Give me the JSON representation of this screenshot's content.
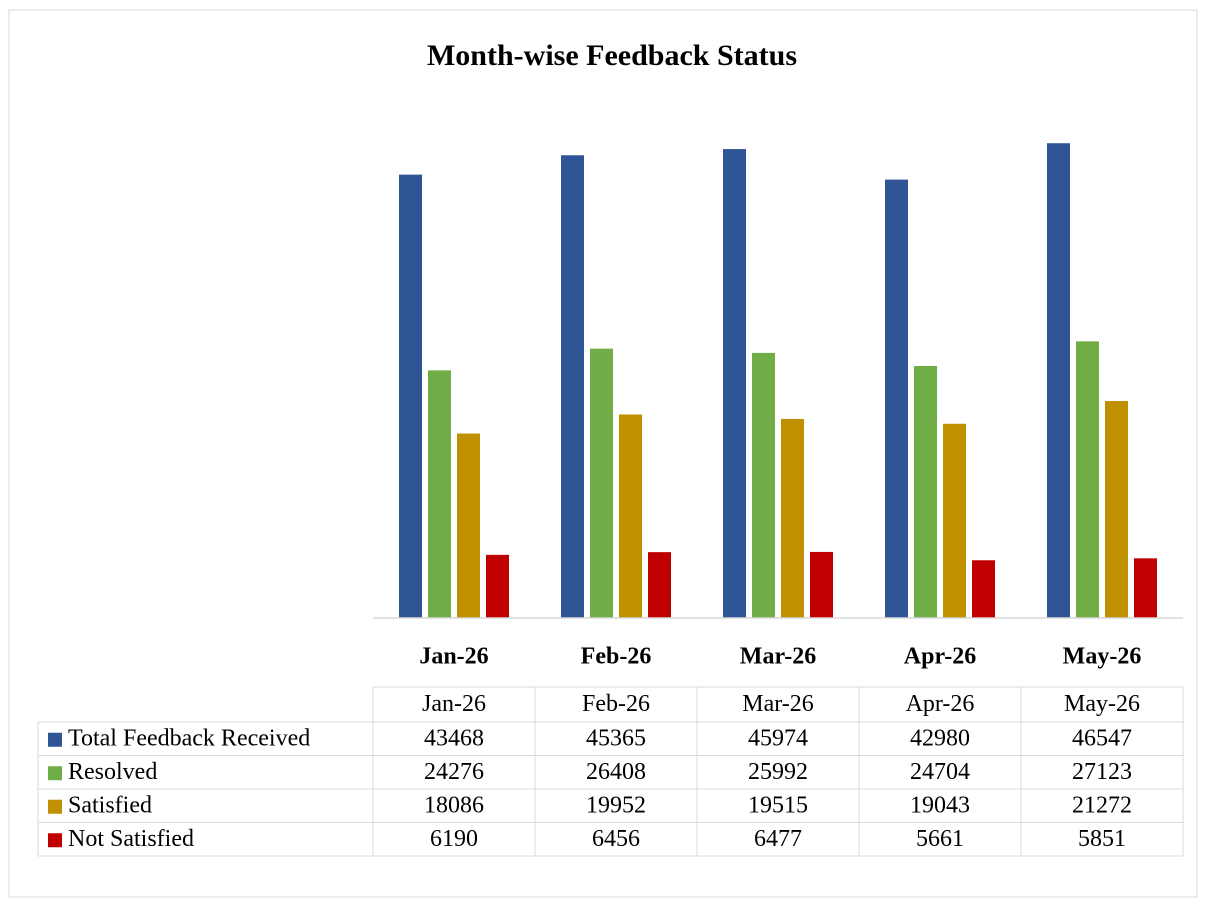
{
  "chart_data": {
    "type": "bar",
    "title": "Month-wise Feedback Status",
    "categories": [
      "Jan-26",
      "Feb-26",
      "Mar-26",
      "Apr-26",
      "May-26"
    ],
    "series": [
      {
        "name": "Total Feedback Received",
        "color": "#2f5597",
        "values": [
          43468,
          45365,
          45974,
          42980,
          46547
        ]
      },
      {
        "name": "Resolved",
        "color": "#70ad47",
        "values": [
          24276,
          26408,
          25992,
          24704,
          27123
        ]
      },
      {
        "name": "Satisfied",
        "color": "#bf9000",
        "values": [
          18086,
          19952,
          19515,
          19043,
          21272
        ]
      },
      {
        "name": "Not Satisfied",
        "color": "#c00000",
        "values": [
          6190,
          6456,
          6477,
          5661,
          5851
        ]
      }
    ],
    "ylim": [
      0,
      50000
    ]
  }
}
